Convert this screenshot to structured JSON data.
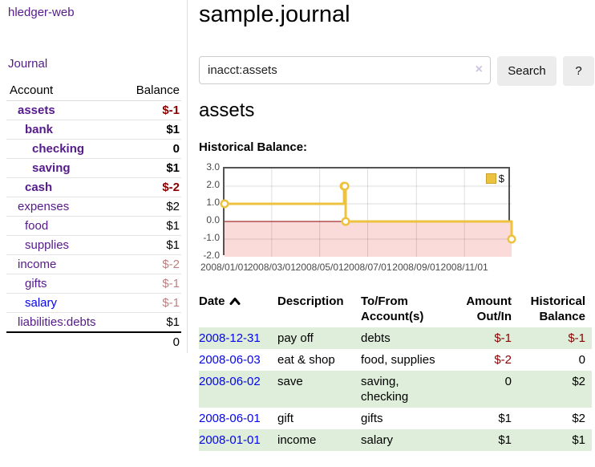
{
  "app": {
    "title": "hledger-web"
  },
  "colors": {
    "link_purple": "#551a8b",
    "link_blue": "#0505e8",
    "negative_strong": "#8b0000",
    "negative_faded": "#bc8080",
    "row_shaded_green": "#dfeeda",
    "chart_line_gold": "#edc240",
    "chart_negative_fill": "#fbdada",
    "zero_line": "#8b0000"
  },
  "sidebar": {
    "nav_journal": "Journal",
    "accounts": {
      "col_account": "Account",
      "col_balance": "Balance",
      "rows": [
        {
          "name": "assets",
          "indent": 1,
          "bold": true,
          "link": "purple",
          "balance": "$-1",
          "balance_class": "neg b"
        },
        {
          "name": "bank",
          "indent": 2,
          "bold": true,
          "link": "purple",
          "balance": "$1",
          "balance_class": "b"
        },
        {
          "name": "checking",
          "indent": 3,
          "bold": true,
          "link": "purple",
          "balance": "0",
          "balance_class": "b"
        },
        {
          "name": "saving",
          "indent": 3,
          "bold": true,
          "link": "purple",
          "balance": "$1",
          "balance_class": "b"
        },
        {
          "name": "cash",
          "indent": 2,
          "bold": true,
          "link": "purple",
          "balance": "$-2",
          "balance_class": "neg b"
        },
        {
          "name": "expenses",
          "indent": 1,
          "bold": false,
          "link": "purple",
          "balance": "$2",
          "balance_class": ""
        },
        {
          "name": "food",
          "indent": 2,
          "bold": false,
          "link": "purple",
          "balance": "$1",
          "balance_class": ""
        },
        {
          "name": "supplies",
          "indent": 2,
          "bold": false,
          "link": "purple",
          "balance": "$1",
          "balance_class": ""
        },
        {
          "name": "income",
          "indent": 1,
          "bold": false,
          "link": "purple",
          "balance": "$-2",
          "balance_class": "negfade"
        },
        {
          "name": "gifts",
          "indent": 2,
          "bold": false,
          "link": "purple",
          "balance": "$-1",
          "balance_class": "negfade"
        },
        {
          "name": "salary",
          "indent": 2,
          "bold": false,
          "link": "blue",
          "balance": "$-1",
          "balance_class": "negfade"
        },
        {
          "name": "liabilities:debts",
          "indent": 1,
          "bold": false,
          "link": "purple",
          "balance": "$1",
          "balance_class": ""
        }
      ],
      "total": "0"
    }
  },
  "main": {
    "title": "sample.journal",
    "search": {
      "value": "inacct:assets",
      "clear_icon": "×",
      "search_button": "Search",
      "help_button": "?"
    },
    "heading": "assets",
    "chart_title": "Historical Balance:",
    "register": {
      "headers": {
        "date": "Date",
        "description": "Description",
        "accounts": "To/From Account(s)",
        "amount": "Amount Out/In",
        "balance": "Historical Balance"
      },
      "rows": [
        {
          "date": "2008-12-31",
          "description": "pay off",
          "accounts": "debts",
          "amount": "$-1",
          "amount_neg": true,
          "balance": "$-1",
          "balance_neg": true,
          "shaded": true
        },
        {
          "date": "2008-06-03",
          "description": "eat & shop",
          "accounts": "food, supplies",
          "amount": "$-2",
          "amount_neg": true,
          "balance": "0",
          "balance_neg": false,
          "shaded": false
        },
        {
          "date": "2008-06-02",
          "description": "save",
          "accounts": "saving,\nchecking",
          "amount": "0",
          "amount_neg": false,
          "balance": "$2",
          "balance_neg": false,
          "shaded": true
        },
        {
          "date": "2008-06-01",
          "description": "gift",
          "accounts": "gifts",
          "amount": "$1",
          "amount_neg": false,
          "balance": "$2",
          "balance_neg": false,
          "shaded": false
        },
        {
          "date": "2008-01-01",
          "description": "income",
          "accounts": "salary",
          "amount": "$1",
          "amount_neg": false,
          "balance": "$1",
          "balance_neg": false,
          "shaded": true
        }
      ]
    }
  },
  "chart_data": {
    "type": "line",
    "style": "step",
    "title": "Historical Balance:",
    "series": [
      {
        "name": "$",
        "color": "#edc240",
        "points": [
          [
            "2008-01-01",
            1
          ],
          [
            "2008-06-01",
            2
          ],
          [
            "2008-06-02",
            2
          ],
          [
            "2008-06-03",
            0
          ],
          [
            "2008-12-31",
            -1
          ]
        ]
      }
    ],
    "x_start": "2008-01-01",
    "x_end": "2008-12-31",
    "x_ticks": [
      "2008/01/01",
      "2008/03/01",
      "2008/05/01",
      "2008/07/01",
      "2008/09/01",
      "2008/11/01"
    ],
    "y_ticks": [
      "3.0",
      "2.0",
      "1.0",
      "0.0",
      "-1.0",
      "-2.0"
    ],
    "ylim": [
      -2,
      3
    ],
    "grid": true,
    "legend_position": "top-right",
    "legend_label": "$",
    "negative_region_color": "#fbdada",
    "zero_line_color": "#8b0000"
  }
}
